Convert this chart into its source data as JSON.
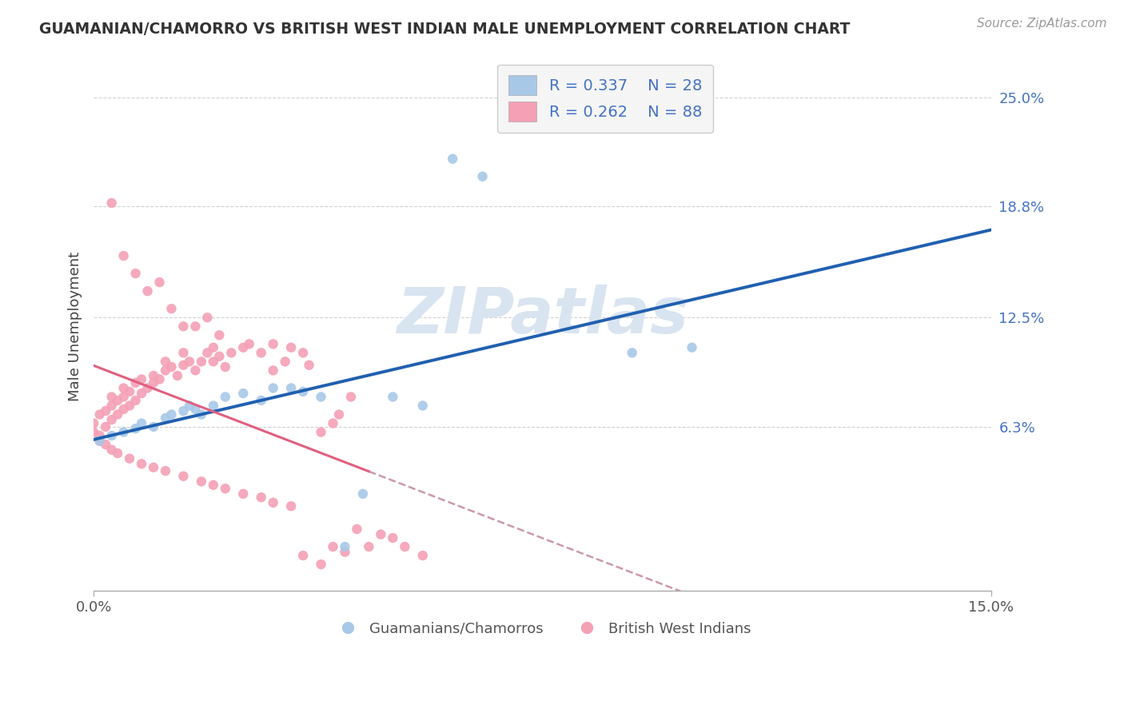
{
  "title": "GUAMANIAN/CHAMORRO VS BRITISH WEST INDIAN MALE UNEMPLOYMENT CORRELATION CHART",
  "source": "Source: ZipAtlas.com",
  "ylabel": "Male Unemployment",
  "x_min": 0.0,
  "x_max": 0.15,
  "y_min": -0.03,
  "y_max": 0.27,
  "y_ticks": [
    0.063,
    0.125,
    0.188,
    0.25
  ],
  "y_tick_labels": [
    "6.3%",
    "12.5%",
    "18.8%",
    "25.0%"
  ],
  "x_ticks": [
    0.0,
    0.15
  ],
  "x_tick_labels": [
    "0.0%",
    "15.0%"
  ],
  "blue_color": "#a8c8e8",
  "pink_color": "#f4a0b5",
  "blue_line_color": "#2060b0",
  "pink_line_color": "#e06080",
  "pink_dash_color": "#c08090",
  "R_blue": 0.337,
  "N_blue": 28,
  "R_pink": 0.262,
  "N_pink": 88,
  "blue_scatter_x": [
    0.001,
    0.003,
    0.005,
    0.007,
    0.008,
    0.01,
    0.012,
    0.013,
    0.015,
    0.016,
    0.017,
    0.018,
    0.02,
    0.022,
    0.025,
    0.028,
    0.03,
    0.033,
    0.035,
    0.038,
    0.042,
    0.045,
    0.05,
    0.055,
    0.06,
    0.065,
    0.09,
    0.1
  ],
  "blue_scatter_y": [
    0.055,
    0.058,
    0.06,
    0.062,
    0.065,
    0.063,
    0.068,
    0.07,
    0.072,
    0.075,
    0.073,
    0.07,
    0.075,
    0.08,
    0.082,
    0.078,
    0.085,
    0.085,
    0.083,
    0.08,
    -0.005,
    0.025,
    0.08,
    0.075,
    0.215,
    0.205,
    0.105,
    0.108
  ],
  "pink_scatter_x": [
    0.0,
    0.0,
    0.001,
    0.001,
    0.002,
    0.002,
    0.003,
    0.003,
    0.003,
    0.004,
    0.004,
    0.005,
    0.005,
    0.005,
    0.006,
    0.006,
    0.007,
    0.007,
    0.008,
    0.008,
    0.009,
    0.01,
    0.01,
    0.011,
    0.012,
    0.012,
    0.013,
    0.014,
    0.015,
    0.015,
    0.016,
    0.017,
    0.018,
    0.019,
    0.02,
    0.02,
    0.021,
    0.022,
    0.023,
    0.025,
    0.026,
    0.028,
    0.03,
    0.03,
    0.032,
    0.033,
    0.035,
    0.036,
    0.038,
    0.04,
    0.041,
    0.043,
    0.003,
    0.005,
    0.007,
    0.009,
    0.011,
    0.013,
    0.015,
    0.017,
    0.019,
    0.021,
    0.001,
    0.002,
    0.003,
    0.004,
    0.006,
    0.008,
    0.01,
    0.012,
    0.015,
    0.018,
    0.02,
    0.022,
    0.025,
    0.028,
    0.03,
    0.033,
    0.035,
    0.038,
    0.04,
    0.042,
    0.044,
    0.046,
    0.048,
    0.05,
    0.052,
    0.055
  ],
  "pink_scatter_y": [
    0.06,
    0.065,
    0.058,
    0.07,
    0.063,
    0.072,
    0.067,
    0.075,
    0.08,
    0.07,
    0.078,
    0.073,
    0.08,
    0.085,
    0.075,
    0.083,
    0.078,
    0.088,
    0.082,
    0.09,
    0.085,
    0.088,
    0.092,
    0.09,
    0.095,
    0.1,
    0.097,
    0.092,
    0.098,
    0.105,
    0.1,
    0.095,
    0.1,
    0.105,
    0.1,
    0.108,
    0.103,
    0.097,
    0.105,
    0.108,
    0.11,
    0.105,
    0.11,
    0.095,
    0.1,
    0.108,
    0.105,
    0.098,
    0.06,
    0.065,
    0.07,
    0.08,
    0.19,
    0.16,
    0.15,
    0.14,
    0.145,
    0.13,
    0.12,
    0.12,
    0.125,
    0.115,
    0.055,
    0.053,
    0.05,
    0.048,
    0.045,
    0.042,
    0.04,
    0.038,
    0.035,
    0.032,
    0.03,
    0.028,
    0.025,
    0.023,
    0.02,
    0.018,
    -0.01,
    -0.015,
    -0.005,
    -0.008,
    0.005,
    -0.005,
    0.002,
    0.0,
    -0.005,
    -0.01
  ],
  "background_color": "#ffffff",
  "grid_color": "#cccccc",
  "watermark": "ZIPatlas",
  "watermark_color": "#d8e4f0"
}
